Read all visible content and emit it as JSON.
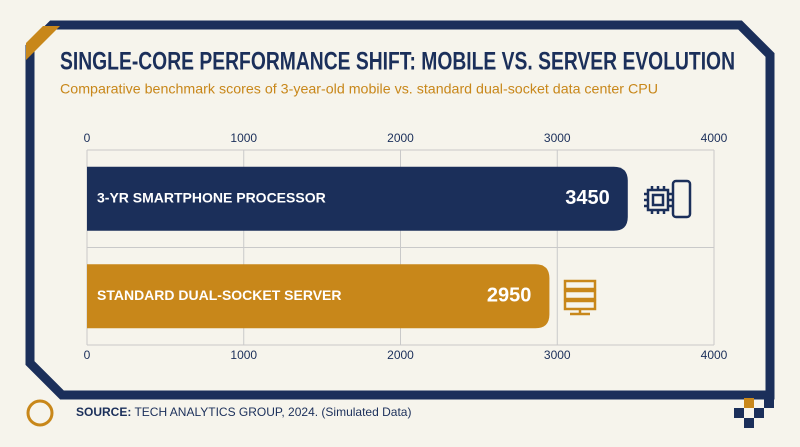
{
  "chart_data": {
    "type": "hbar",
    "title": "SINGLE-CORE PERFORMANCE SHIFT: MOBILE VS. SERVER EVOLUTION",
    "subtitle": "Comparative benchmark scores of 3-year-old mobile vs. standard dual-socket data center CPU",
    "categories": [
      "3-YR SMARTPHONE PROCESSOR",
      "STANDARD DUAL-SOCKET SERVER"
    ],
    "values": [
      3450,
      2950
    ],
    "colors": [
      "#1b2f5a",
      "#c8871a"
    ],
    "xlim": [
      0,
      4000
    ],
    "xticks": [
      0,
      1000,
      2000,
      3000,
      4000
    ],
    "grid": true,
    "source_label": "SOURCE:",
    "source_text": "TECH ANALYTICS GROUP, 2024. (Simulated Data)"
  }
}
